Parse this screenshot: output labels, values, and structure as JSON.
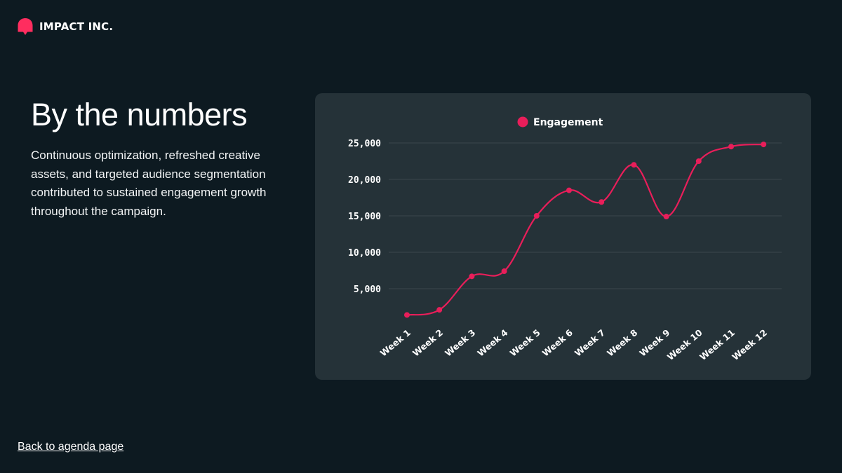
{
  "brand": {
    "name": "IMPACT INC.",
    "logo_icon": "bell-shape-icon",
    "accent": "#ff2d5f"
  },
  "title": "By the numbers",
  "description": "Continuous optimization, refreshed creative assets, and targeted audience segmentation contributed to sustained engagement growth throughout the campaign.",
  "footer": {
    "back_link": "Back to agenda page"
  },
  "chart_data": {
    "type": "line",
    "categories": [
      "Week 1",
      "Week 2",
      "Week 3",
      "Week 4",
      "Week 5",
      "Week 6",
      "Week 7",
      "Week 8",
      "Week 9",
      "Week 10",
      "Week 11",
      "Week 12"
    ],
    "series": [
      {
        "name": "Engagement",
        "color": "#e91e5a",
        "values": [
          1400,
          2100,
          6700,
          7400,
          15000,
          18500,
          16900,
          22000,
          14900,
          22500,
          24500,
          24800
        ]
      }
    ],
    "ylim": [
      0,
      25000
    ],
    "yticks": [
      5000,
      10000,
      15000,
      20000,
      25000
    ],
    "ytick_labels": [
      "5,000",
      "10,000",
      "15,000",
      "20,000",
      "25,000"
    ],
    "legend_position": "top-center",
    "grid": true,
    "smooth": true,
    "title": "",
    "xlabel": "",
    "ylabel": ""
  }
}
